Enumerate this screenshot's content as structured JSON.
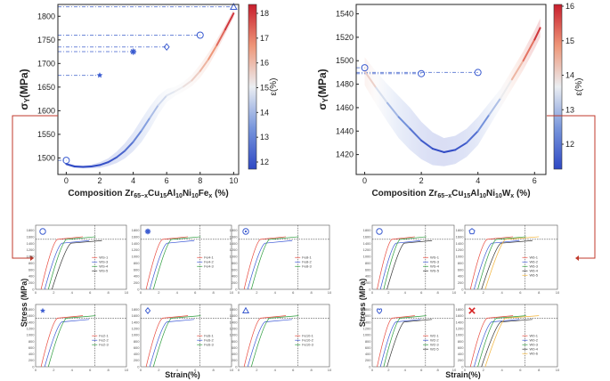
{
  "chart_data": [
    {
      "type": "line",
      "xlabel_prefix": "Composition Zr",
      "xlabel_sub1": "65−x",
      "xlabel_mid1": "Cu",
      "xlabel_sub2": "15",
      "xlabel_mid2": "Al",
      "xlabel_sub3": "10",
      "xlabel_mid3": "Ni",
      "xlabel_sub4": "10",
      "xlabel_mid4": "Fe",
      "xlabel_sub5": "x",
      "xlabel_suffix": " (%)",
      "ylabel_main": "σ",
      "ylabel_sub": "Y",
      "ylabel_unit": "(MPa)",
      "xlim": [
        -0.5,
        10.3
      ],
      "ylim": [
        1465,
        1825
      ],
      "xticks": [
        "0",
        "2",
        "4",
        "6",
        "8",
        "10"
      ],
      "yticks": [
        "1500",
        "1550",
        "1600",
        "1650",
        "1700",
        "1750",
        "1800"
      ],
      "curve_x": [
        0,
        0.5,
        1,
        1.5,
        2,
        2.5,
        3,
        3.5,
        4,
        4.5,
        5,
        5.5,
        6,
        6.5,
        7,
        7.5,
        8,
        8.5,
        9,
        9.5,
        10
      ],
      "curve_y": [
        1487,
        1482,
        1481,
        1482,
        1485,
        1491,
        1501,
        1515,
        1534,
        1558,
        1585,
        1612,
        1632,
        1641,
        1651,
        1664,
        1684,
        1709,
        1739,
        1772,
        1806
      ],
      "band_halfwidth": [
        3,
        3,
        3,
        4,
        6,
        8,
        12,
        16,
        20,
        24,
        24,
        20,
        14,
        10,
        10,
        12,
        14,
        14,
        12,
        10,
        8
      ],
      "markers": [
        {
          "symbol": "circle",
          "x": 0,
          "y": 1495
        },
        {
          "symbol": "star",
          "x": 2,
          "y": 1675
        },
        {
          "symbol": "asterisk",
          "x": 4,
          "y": 1725
        },
        {
          "symbol": "diamond",
          "x": 6,
          "y": 1735
        },
        {
          "symbol": "circle",
          "x": 8,
          "y": 1760
        },
        {
          "symbol": "triangle",
          "x": 10,
          "y": 1820
        }
      ],
      "colorbar": {
        "label_main": "ε",
        "label_unit": "(%)",
        "ticks": [
          "12",
          "13",
          "14",
          "15",
          "16",
          "17",
          "18"
        ]
      }
    },
    {
      "type": "line",
      "xlabel_prefix": "Composition Zr",
      "xlabel_sub1": "65−x",
      "xlabel_mid1": "Cu",
      "xlabel_sub2": "15",
      "xlabel_mid2": "Al",
      "xlabel_sub3": "10",
      "xlabel_mid3": "Ni",
      "xlabel_sub4": "10",
      "xlabel_mid4": "W",
      "xlabel_sub5": "x",
      "xlabel_suffix": " (%)",
      "ylabel_main": "σ",
      "ylabel_sub": "Y",
      "ylabel_unit": "(MPa)",
      "xlim": [
        -0.3,
        6.4
      ],
      "ylim": [
        1403,
        1548
      ],
      "xticks": [
        "0",
        "2",
        "4",
        "6"
      ],
      "yticks": [
        "1420",
        "1440",
        "1460",
        "1480",
        "1500",
        "1520",
        "1540"
      ],
      "curve_x": [
        0,
        0.4,
        0.8,
        1.2,
        1.6,
        2,
        2.4,
        2.8,
        3.2,
        3.6,
        4,
        4.4,
        4.8,
        5.2,
        5.6,
        6,
        6.2
      ],
      "curve_y": [
        1491,
        1477,
        1464,
        1452,
        1442,
        1432,
        1425,
        1422,
        1424,
        1430,
        1440,
        1454,
        1468,
        1484,
        1500,
        1518,
        1528
      ],
      "band_halfwidth": [
        12,
        14,
        16,
        18,
        18,
        16,
        14,
        12,
        12,
        12,
        12,
        10,
        8,
        8,
        8,
        8,
        8
      ],
      "markers": [
        {
          "symbol": "circle",
          "x": 0,
          "y": 1494
        },
        {
          "symbol": "circle",
          "x": 2,
          "y": 1489
        },
        {
          "symbol": "circle",
          "x": 4,
          "y": 1490
        }
      ],
      "colorbar": {
        "label_main": "ε",
        "label_unit": "(%)",
        "ticks": [
          "12",
          "13",
          "14",
          "15",
          "16"
        ]
      }
    }
  ],
  "stress_strain": {
    "ylabel": "Stress (MPa)",
    "xlabel": "Strain(%)",
    "left_panels": [
      {
        "symbol": "circle",
        "legend": [
          "WS-1",
          "WS-3",
          "WS-4",
          "WS-5"
        ]
      },
      {
        "symbol": "asterisk",
        "legend": [
          "Fe4-1",
          "Fe4-2",
          "Fe4-3"
        ]
      },
      {
        "symbol": "circle-dot",
        "legend": [
          "Fe8-1",
          "Fe8-2",
          "Fe8-3"
        ]
      },
      {
        "symbol": "star",
        "legend": [
          "Fe2-1",
          "Fe2-2",
          "Fe2-3"
        ]
      },
      {
        "symbol": "diamond",
        "legend": [
          "Fe6-1",
          "Fe6-2",
          "Fe6-3"
        ]
      },
      {
        "symbol": "triangle",
        "legend": [
          "Fe10-1",
          "Fe10-2",
          "Fe10-3"
        ]
      }
    ],
    "right_panels": [
      {
        "symbol": "circle",
        "legend": [
          "WS-1",
          "WS-3",
          "WS-4",
          "WS-5"
        ]
      },
      {
        "symbol": "pentagon",
        "legend": [
          "W6-1",
          "W6-2",
          "W6-3",
          "W6-4",
          "W6-5"
        ]
      },
      {
        "symbol": "heart",
        "legend": [
          "W2-1",
          "W2-2",
          "W2-3",
          "W2-5"
        ]
      },
      {
        "symbol": "cross",
        "legend": [
          "W0-1",
          "W0-2",
          "W0-3",
          "W0-4",
          "W0-6"
        ]
      }
    ],
    "y_ticks": [
      "0",
      "200",
      "400",
      "600",
      "800",
      "1000",
      "1200",
      "1400",
      "1600",
      "1800"
    ],
    "x_ticks": [
      "0",
      "2",
      "4",
      "6",
      "8",
      "10"
    ]
  }
}
